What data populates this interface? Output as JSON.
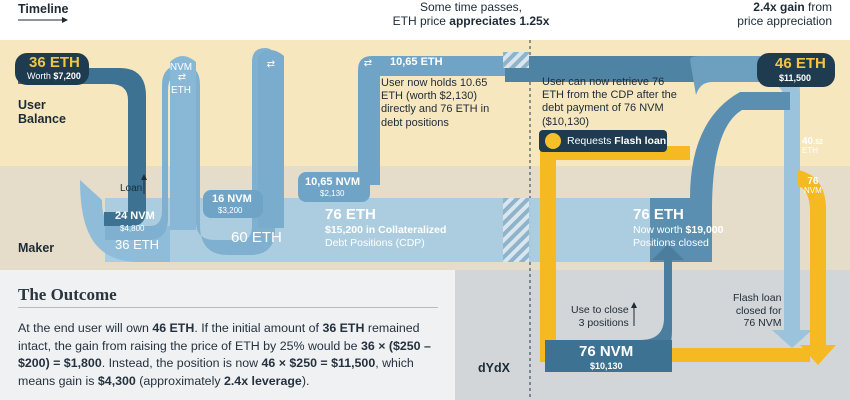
{
  "header": {
    "timeline_label": "Timeline",
    "time_passes_line1": "Some time passes,",
    "time_passes_line2_prefix": "ETH price ",
    "time_passes_line2_bold": "appreciates 1.25x",
    "gain_line1_bold": "2.4x gain",
    "gain_line1_rest": " from",
    "gain_line2": "price appreciation"
  },
  "bands": {
    "user_balance": "User\nBalance",
    "maker": "Maker",
    "dydx": "dYdX"
  },
  "flow_labels": {
    "start_eth": "36 ETH",
    "start_worth_prefix": "Worth ",
    "start_worth_value": "$7,200",
    "loan": "Loan",
    "nvm_24": "24 NVM",
    "nvm_24_usd": "$4,800",
    "eth_36_maker": "36 ETH",
    "nvm_eth_swap_top": "NVM",
    "nvm_eth_swap_bottom": "ETH",
    "nvm_16": "16 NVM",
    "nvm_16_usd": "$3,200",
    "eth_60_maker": "60 ETH",
    "nvm_1065": "10,65 NVM",
    "nvm_1065_usd": "$2,130",
    "eth_1065_user": "10,65 ETH",
    "eth_76_cdp": "76 ETH",
    "eth_76_cdp_usd": "$15,200 in Collateralized",
    "eth_76_cdp_usd2": "Debt Positions (CDP)",
    "user_holds_note": "User now holds 10.65\nETH (worth $2,130)\ndirectly and 76 ETH in\ndebt positions",
    "retrieve_note": "User can now retrieve 76\nETH from the CDP after the\ndebt payment of 76 NVM\n($10,130)",
    "requests_prefix": "Requests ",
    "requests_bold": "Flash loan",
    "eth_76_closed": "76 ETH",
    "eth_76_closed_sub1": "Now worth ",
    "eth_76_closed_sub1_bold": "$19,000",
    "eth_76_closed_sub2": "Positions closed",
    "end_eth": "46 ETH",
    "end_usd": "$11,500",
    "eth_4052_num": "40",
    "eth_4052_dec": ".52",
    "eth_4052_unit": "ETH",
    "nvm_76_right": "76",
    "nvm_76_right_unit": "NVM",
    "use_to_close": "Use to close\n3 positions",
    "flash_closed": "Flash loan\nclosed for\n76 NVM",
    "nvm_76_dydx": "76 NVM",
    "nvm_76_dydx_usd": "$10,130"
  },
  "outcome": {
    "title": "The Outcome",
    "t1": "At the end user will own ",
    "b1": "46 ETH",
    "t2": ". If the initial amount of ",
    "b2": "36 ETH",
    "t3": " remained intact, the gain from raising the price of ETH by 25% would be ",
    "b3": "36 × ($250 – $200) = $1,800",
    "t4": ". Instead, the position is now ",
    "b4": "46 × $250 = $11,500",
    "t5": ", which means gain is ",
    "b5": "$4,300",
    "t6": " (approximately ",
    "b6": "2.4x leverage",
    "t7": ")."
  },
  "colors": {
    "user_band": "#f7e7bf",
    "maker_band": "#e5ddc9",
    "outcome_bg": "#f0f1f2",
    "dydx_bg": "#d3d6d9",
    "flow_dark": "#3e7293",
    "flow_light": "#7fb0d0",
    "flow_pale": "#a9cbe1",
    "flash_yellow": "#f5b921",
    "badge_navy": "#1f3b4f",
    "gold_text": "#f5c542"
  }
}
